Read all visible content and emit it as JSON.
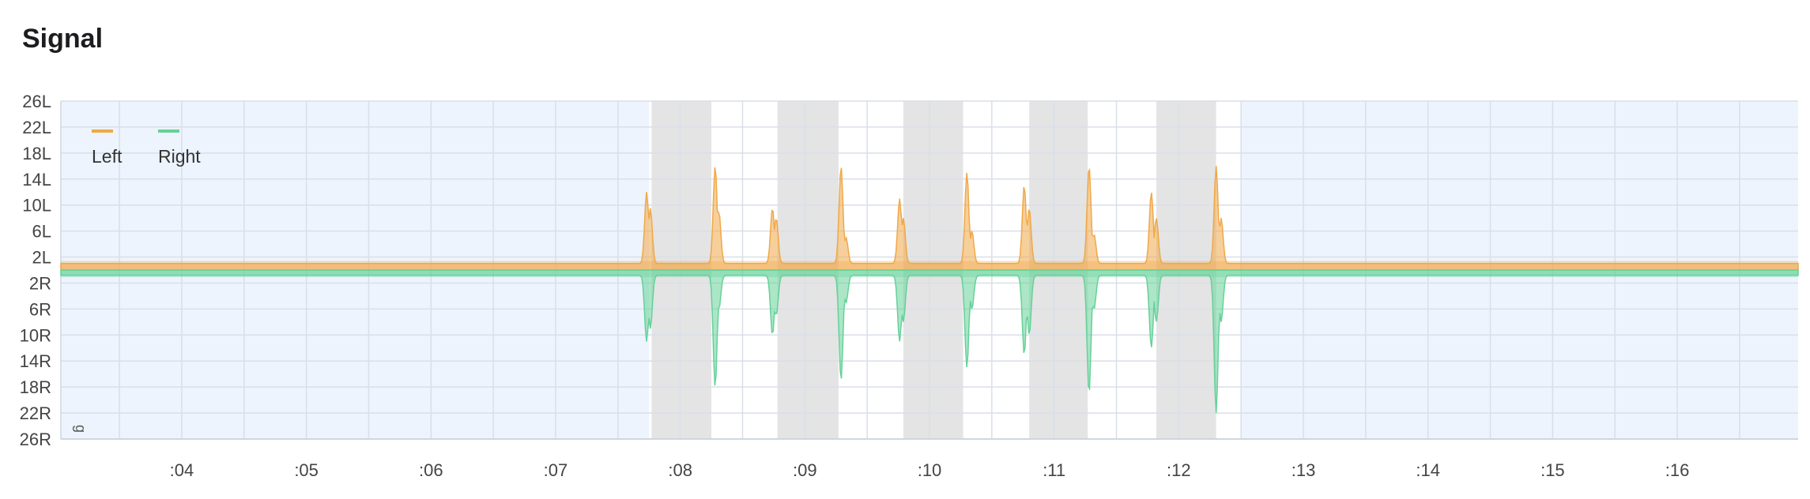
{
  "header": {
    "title": "Signal"
  },
  "colors": {
    "left": "#f0a848",
    "right": "#66d199",
    "outside_band": "#edf4fd",
    "shaded_band": "#e4e4e4",
    "grid": "#d9dfe8"
  },
  "chart_data": {
    "type": "area",
    "title": "",
    "unit_label": "g",
    "legend": {
      "position": "top-left",
      "entries": [
        "Left",
        "Right"
      ]
    },
    "grid": true,
    "x_range": [
      3.03,
      16.97
    ],
    "y_range": [
      -26,
      26
    ],
    "x_ticks": [
      ":04",
      ":05",
      ":06",
      ":07",
      ":08",
      ":09",
      ":10",
      ":11",
      ":12",
      ":13",
      ":14",
      ":15",
      ":16"
    ],
    "x_tick_values": [
      4,
      5,
      6,
      7,
      8,
      9,
      10,
      11,
      12,
      13,
      14,
      15,
      16
    ],
    "y_ticks": [
      "26L",
      "22L",
      "18L",
      "14L",
      "10L",
      "6L",
      "2L",
      "2R",
      "6R",
      "10R",
      "14R",
      "18R",
      "22R",
      "26R"
    ],
    "y_tick_values": [
      26,
      22,
      18,
      14,
      10,
      6,
      2,
      -2,
      -6,
      -10,
      -14,
      -18,
      -22,
      -26
    ],
    "highlight_window": [
      7.75,
      12.5
    ],
    "shaded_intervals": [
      [
        7.77,
        8.25
      ],
      [
        8.78,
        9.27
      ],
      [
        9.79,
        10.27
      ],
      [
        10.8,
        11.27
      ],
      [
        11.82,
        12.3
      ]
    ],
    "series": [
      {
        "name": "Left",
        "baseline": 1.0,
        "band": [
          0,
          1.4
        ],
        "peaks": [
          {
            "x": 7.73,
            "value": 12.0
          },
          {
            "x": 7.76,
            "value": 9.5
          },
          {
            "x": 8.28,
            "value": 16.0
          },
          {
            "x": 8.31,
            "value": 9.0
          },
          {
            "x": 8.74,
            "value": 9.5
          },
          {
            "x": 8.77,
            "value": 8.0
          },
          {
            "x": 9.29,
            "value": 16.0
          },
          {
            "x": 9.33,
            "value": 5.0
          },
          {
            "x": 9.76,
            "value": 11.0
          },
          {
            "x": 9.79,
            "value": 8.0
          },
          {
            "x": 10.3,
            "value": 15.0
          },
          {
            "x": 10.34,
            "value": 6.0
          },
          {
            "x": 10.76,
            "value": 13.0
          },
          {
            "x": 10.8,
            "value": 9.5
          },
          {
            "x": 11.28,
            "value": 16.0
          },
          {
            "x": 11.32,
            "value": 5.5
          },
          {
            "x": 11.78,
            "value": 12.0
          },
          {
            "x": 11.82,
            "value": 8.0
          },
          {
            "x": 12.3,
            "value": 16.0
          },
          {
            "x": 12.34,
            "value": 8.0
          }
        ]
      },
      {
        "name": "Right",
        "baseline": -0.8,
        "band": [
          -1.1,
          0
        ],
        "peaks": [
          {
            "x": 7.73,
            "value": -11.0
          },
          {
            "x": 7.76,
            "value": -9.0
          },
          {
            "x": 8.28,
            "value": -18.0
          },
          {
            "x": 8.31,
            "value": -6.0
          },
          {
            "x": 8.74,
            "value": -10.0
          },
          {
            "x": 8.77,
            "value": -7.0
          },
          {
            "x": 9.29,
            "value": -17.0
          },
          {
            "x": 9.33,
            "value": -5.0
          },
          {
            "x": 9.76,
            "value": -11.0
          },
          {
            "x": 9.79,
            "value": -8.0
          },
          {
            "x": 10.3,
            "value": -15.0
          },
          {
            "x": 10.34,
            "value": -6.0
          },
          {
            "x": 10.76,
            "value": -13.0
          },
          {
            "x": 10.8,
            "value": -10.0
          },
          {
            "x": 11.28,
            "value": -19.0
          },
          {
            "x": 11.32,
            "value": -6.0
          },
          {
            "x": 11.78,
            "value": -12.0
          },
          {
            "x": 11.82,
            "value": -8.0
          },
          {
            "x": 12.3,
            "value": -22.0
          },
          {
            "x": 12.34,
            "value": -8.0
          }
        ]
      }
    ]
  }
}
